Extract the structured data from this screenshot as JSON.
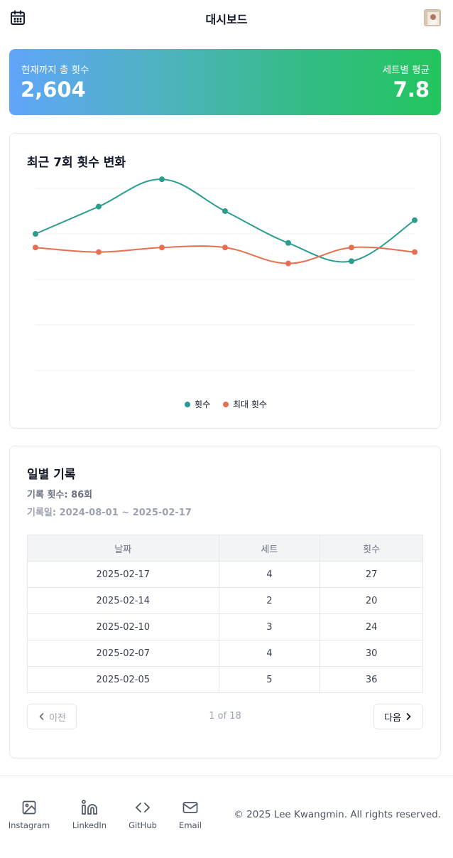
{
  "header": {
    "title": "대시보드",
    "left_icon": "calendar-icon",
    "right_icon": "avatar"
  },
  "summary": {
    "total_label": "현재까지 총 횟수",
    "total_value": "2,604",
    "avg_label": "세트별 평균",
    "avg_value": "7.8"
  },
  "chart": {
    "title": "최근 7회 횟수 변화",
    "chart_data": {
      "type": "line",
      "x": [
        1,
        2,
        3,
        4,
        5,
        6,
        7
      ],
      "series": [
        {
          "name": "횟수",
          "color": "#2a9d8f",
          "values": [
            30,
            36,
            42,
            35,
            28,
            24,
            33
          ]
        },
        {
          "name": "최대 횟수",
          "color": "#e76f51",
          "values": [
            27,
            26,
            27,
            27,
            23.5,
            27,
            26
          ]
        }
      ],
      "ylim": [
        0,
        40
      ],
      "grid": true,
      "legend": "bottom"
    }
  },
  "records": {
    "title": "일별 기록",
    "count_text": "기록 횟수: 86회",
    "dates_text": "기록일: 2024-08-01 ~ 2025-02-17",
    "columns": [
      "날짜",
      "세트",
      "횟수"
    ],
    "rows": [
      [
        "2025-02-17",
        "4",
        "27"
      ],
      [
        "2025-02-14",
        "2",
        "20"
      ],
      [
        "2025-02-10",
        "3",
        "24"
      ],
      [
        "2025-02-07",
        "4",
        "30"
      ],
      [
        "2025-02-05",
        "5",
        "36"
      ]
    ],
    "pager": {
      "prev_label": "이전",
      "next_label": "다음",
      "page_info": "1 of 18"
    }
  },
  "footer": {
    "links": [
      {
        "label": "Instagram",
        "icon": "image-icon"
      },
      {
        "label": "LinkedIn",
        "icon": "linkedin-icon"
      },
      {
        "label": "GitHub",
        "icon": "code-icon"
      },
      {
        "label": "Email",
        "icon": "mail-icon"
      }
    ],
    "copyright": "© 2025 Lee Kwangmin. All rights reserved."
  }
}
